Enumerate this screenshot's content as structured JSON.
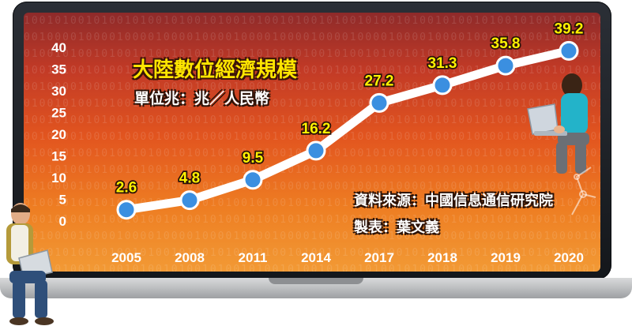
{
  "colors": {
    "line": "#ffffff",
    "marker_fill": "#3b8fe0",
    "marker_stroke": "#ffffff",
    "data_label": "#fff200",
    "title": "#ffe600",
    "background_top": "#8e2a2a",
    "background_bottom": "#f29a35"
  },
  "chart_data": {
    "type": "line",
    "title": "大陸數位經濟規模",
    "subtitle": "單位兆：兆／人民幣",
    "source": "資料來源：中國信息通信研究院",
    "author": "製表：葉文義",
    "categories": [
      "2005",
      "2008",
      "2011",
      "2014",
      "2017",
      "2018",
      "2019",
      "2020"
    ],
    "values": [
      2.6,
      4.8,
      9.5,
      16.2,
      27.2,
      31.3,
      35.8,
      39.2
    ],
    "value_labels": [
      "2.6",
      "4.8",
      "9.5",
      "16.2",
      "27.2",
      "31.3",
      "35.8",
      "39.2"
    ],
    "yticks": [
      "0",
      "5",
      "10",
      "15",
      "20",
      "25",
      "30",
      "35",
      "40"
    ],
    "ylim": [
      0,
      40
    ],
    "grid": false,
    "legend": "none"
  }
}
